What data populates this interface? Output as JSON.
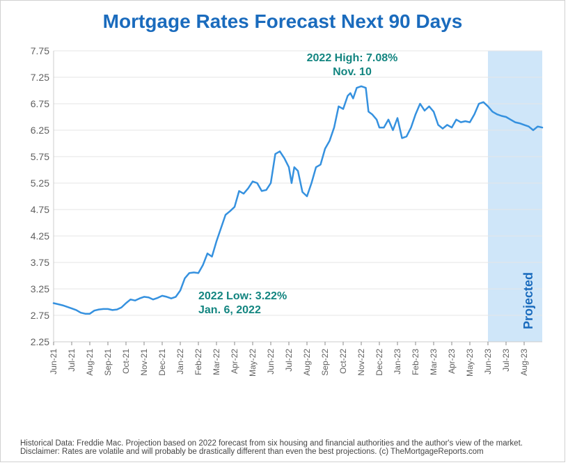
{
  "title": "Mortgage Rates Forecast Next 90 Days",
  "title_color": "#1a6bbd",
  "title_fontsize": 28,
  "line_color": "#3591df",
  "line_width": 2.5,
  "axis_color": "#cccccc",
  "grid_color": "#e6e6e6",
  "tick_color": "#888888",
  "y_label_color": "#606060",
  "y_label_fontsize": 14,
  "x_label_color": "#606060",
  "x_label_fontsize": 12,
  "projected_fill": "#cfe6f9",
  "projected_label": "Projected",
  "projected_label_color": "#1a6bbd",
  "projected_label_fontsize": 18,
  "annotation_color": "#138580",
  "annotation_fontsize": 16,
  "footer_text": "Historical Data: Freddie Mac. Projection based on 2022 forecast from six housing and financial authorities and the author's view of the market. Disclaimer: Rates are volatile and will probably be drastically different than even the best projections. (c) TheMortgageReports.com",
  "footer_fontsize": 11.5,
  "annotations": {
    "high": {
      "line1": "2022 High: 7.08%",
      "line2": "Nov. 10"
    },
    "low": {
      "line1": "2022 Low: 3.22%",
      "line2": "Jan. 6, 2022"
    }
  },
  "y_axis": {
    "min": 2.25,
    "max": 7.75,
    "ticks": [
      2.25,
      2.75,
      3.25,
      3.75,
      4.25,
      4.75,
      5.25,
      5.75,
      6.25,
      6.75,
      7.25,
      7.75
    ]
  },
  "x_axis": {
    "labels": [
      "Jun-21",
      "Jul-21",
      "Aug-21",
      "Sep-21",
      "Oct-21",
      "Nov-21",
      "Dec-21",
      "Jan-22",
      "Feb-22",
      "Mar-22",
      "Apr-22",
      "May-22",
      "Jun-22",
      "Jul-22",
      "Aug-22",
      "Sep-22",
      "Oct-22",
      "Nov-22",
      "Dec-22",
      "Jan-23",
      "Feb-23",
      "Mar-23",
      "Apr-23",
      "May-23",
      "Jun-23",
      "Jul-23",
      "Aug-23"
    ],
    "count": 27
  },
  "projection_start_month_index": 24,
  "series": [
    {
      "m": 0.0,
      "v": 2.98
    },
    {
      "m": 0.25,
      "v": 2.96
    },
    {
      "m": 0.5,
      "v": 2.94
    },
    {
      "m": 0.75,
      "v": 2.91
    },
    {
      "m": 1.0,
      "v": 2.88
    },
    {
      "m": 1.25,
      "v": 2.85
    },
    {
      "m": 1.5,
      "v": 2.8
    },
    {
      "m": 1.75,
      "v": 2.78
    },
    {
      "m": 2.0,
      "v": 2.78
    },
    {
      "m": 2.25,
      "v": 2.84
    },
    {
      "m": 2.5,
      "v": 2.86
    },
    {
      "m": 2.75,
      "v": 2.87
    },
    {
      "m": 3.0,
      "v": 2.87
    },
    {
      "m": 3.25,
      "v": 2.85
    },
    {
      "m": 3.5,
      "v": 2.86
    },
    {
      "m": 3.75,
      "v": 2.9
    },
    {
      "m": 4.0,
      "v": 2.98
    },
    {
      "m": 4.25,
      "v": 3.05
    },
    {
      "m": 4.5,
      "v": 3.03
    },
    {
      "m": 4.75,
      "v": 3.07
    },
    {
      "m": 5.0,
      "v": 3.1
    },
    {
      "m": 5.25,
      "v": 3.09
    },
    {
      "m": 5.5,
      "v": 3.05
    },
    {
      "m": 5.75,
      "v": 3.08
    },
    {
      "m": 6.0,
      "v": 3.12
    },
    {
      "m": 6.25,
      "v": 3.1
    },
    {
      "m": 6.5,
      "v": 3.07
    },
    {
      "m": 6.75,
      "v": 3.1
    },
    {
      "m": 7.0,
      "v": 3.22
    },
    {
      "m": 7.25,
      "v": 3.45
    },
    {
      "m": 7.5,
      "v": 3.55
    },
    {
      "m": 7.75,
      "v": 3.56
    },
    {
      "m": 8.0,
      "v": 3.55
    },
    {
      "m": 8.25,
      "v": 3.7
    },
    {
      "m": 8.5,
      "v": 3.92
    },
    {
      "m": 8.75,
      "v": 3.86
    },
    {
      "m": 9.0,
      "v": 4.15
    },
    {
      "m": 9.25,
      "v": 4.4
    },
    {
      "m": 9.5,
      "v": 4.65
    },
    {
      "m": 9.75,
      "v": 4.72
    },
    {
      "m": 10.0,
      "v": 4.8
    },
    {
      "m": 10.25,
      "v": 5.1
    },
    {
      "m": 10.5,
      "v": 5.05
    },
    {
      "m": 10.75,
      "v": 5.15
    },
    {
      "m": 11.0,
      "v": 5.28
    },
    {
      "m": 11.25,
      "v": 5.25
    },
    {
      "m": 11.5,
      "v": 5.1
    },
    {
      "m": 11.75,
      "v": 5.12
    },
    {
      "m": 12.0,
      "v": 5.25
    },
    {
      "m": 12.25,
      "v": 5.8
    },
    {
      "m": 12.5,
      "v": 5.85
    },
    {
      "m": 12.75,
      "v": 5.72
    },
    {
      "m": 13.0,
      "v": 5.55
    },
    {
      "m": 13.15,
      "v": 5.25
    },
    {
      "m": 13.3,
      "v": 5.55
    },
    {
      "m": 13.5,
      "v": 5.48
    },
    {
      "m": 13.75,
      "v": 5.08
    },
    {
      "m": 14.0,
      "v": 5.0
    },
    {
      "m": 14.25,
      "v": 5.25
    },
    {
      "m": 14.5,
      "v": 5.55
    },
    {
      "m": 14.75,
      "v": 5.6
    },
    {
      "m": 15.0,
      "v": 5.9
    },
    {
      "m": 15.25,
      "v": 6.05
    },
    {
      "m": 15.5,
      "v": 6.3
    },
    {
      "m": 15.75,
      "v": 6.7
    },
    {
      "m": 16.0,
      "v": 6.65
    },
    {
      "m": 16.25,
      "v": 6.9
    },
    {
      "m": 16.4,
      "v": 6.95
    },
    {
      "m": 16.55,
      "v": 6.85
    },
    {
      "m": 16.75,
      "v": 7.05
    },
    {
      "m": 17.0,
      "v": 7.08
    },
    {
      "m": 17.25,
      "v": 7.05
    },
    {
      "m": 17.4,
      "v": 6.6
    },
    {
      "m": 17.6,
      "v": 6.55
    },
    {
      "m": 17.85,
      "v": 6.45
    },
    {
      "m": 18.0,
      "v": 6.3
    },
    {
      "m": 18.25,
      "v": 6.3
    },
    {
      "m": 18.5,
      "v": 6.45
    },
    {
      "m": 18.75,
      "v": 6.25
    },
    {
      "m": 19.0,
      "v": 6.48
    },
    {
      "m": 19.25,
      "v": 6.1
    },
    {
      "m": 19.5,
      "v": 6.13
    },
    {
      "m": 19.75,
      "v": 6.3
    },
    {
      "m": 20.0,
      "v": 6.55
    },
    {
      "m": 20.25,
      "v": 6.75
    },
    {
      "m": 20.5,
      "v": 6.62
    },
    {
      "m": 20.75,
      "v": 6.7
    },
    {
      "m": 21.0,
      "v": 6.6
    },
    {
      "m": 21.25,
      "v": 6.35
    },
    {
      "m": 21.5,
      "v": 6.28
    },
    {
      "m": 21.75,
      "v": 6.35
    },
    {
      "m": 22.0,
      "v": 6.3
    },
    {
      "m": 22.25,
      "v": 6.45
    },
    {
      "m": 22.5,
      "v": 6.4
    },
    {
      "m": 22.75,
      "v": 6.42
    },
    {
      "m": 23.0,
      "v": 6.4
    },
    {
      "m": 23.25,
      "v": 6.55
    },
    {
      "m": 23.5,
      "v": 6.75
    },
    {
      "m": 23.75,
      "v": 6.78
    },
    {
      "m": 24.0,
      "v": 6.7
    },
    {
      "m": 24.25,
      "v": 6.6
    },
    {
      "m": 24.5,
      "v": 6.55
    },
    {
      "m": 24.75,
      "v": 6.52
    },
    {
      "m": 25.0,
      "v": 6.5
    },
    {
      "m": 25.25,
      "v": 6.45
    },
    {
      "m": 25.5,
      "v": 6.4
    },
    {
      "m": 25.75,
      "v": 6.38
    },
    {
      "m": 26.0,
      "v": 6.35
    },
    {
      "m": 26.25,
      "v": 6.32
    },
    {
      "m": 26.5,
      "v": 6.25
    },
    {
      "m": 26.75,
      "v": 6.32
    },
    {
      "m": 27.0,
      "v": 6.3
    }
  ]
}
